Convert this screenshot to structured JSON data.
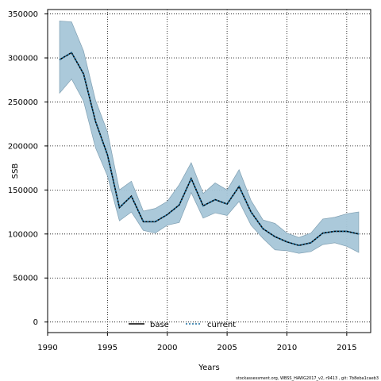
{
  "chart_data": {
    "type": "line",
    "xlabel": "Years",
    "ylabel": "SSB",
    "xlim": [
      1990,
      2017
    ],
    "ylim": [
      -12000,
      355000
    ],
    "x_ticks": [
      1990,
      1995,
      2000,
      2005,
      2010,
      2015
    ],
    "y_ticks": [
      0,
      50000,
      100000,
      150000,
      200000,
      250000,
      300000,
      350000
    ],
    "grid": true,
    "legend_placement": "bottom-center",
    "x": [
      1991,
      1992,
      1993,
      1994,
      1995,
      1996,
      1997,
      1998,
      1999,
      2000,
      2001,
      2002,
      2003,
      2004,
      2005,
      2006,
      2007,
      2008,
      2009,
      2010,
      2011,
      2012,
      2013,
      2014,
      2015,
      2016
    ],
    "series": [
      {
        "name": "base",
        "color": "#000000",
        "style": "solid",
        "values": [
          298000,
          306000,
          282000,
          228000,
          190000,
          130000,
          143000,
          114000,
          114000,
          122000,
          133000,
          163000,
          132000,
          139000,
          134000,
          154000,
          125000,
          106000,
          97000,
          91000,
          87000,
          90000,
          101000,
          103000,
          103000,
          100000
        ]
      },
      {
        "name": "current",
        "color": "#1a6fa0",
        "style": "dotted",
        "values": [
          298000,
          306000,
          282000,
          228000,
          190000,
          130000,
          143000,
          114000,
          114000,
          122000,
          133000,
          163000,
          132000,
          139000,
          134000,
          154000,
          125000,
          106000,
          97000,
          91000,
          87000,
          90000,
          101000,
          103000,
          103000,
          100000
        ]
      }
    ],
    "band": {
      "color": "#a6c6d8",
      "upper": [
        342000,
        341000,
        308000,
        252000,
        216000,
        150000,
        160000,
        126000,
        129000,
        137000,
        156000,
        181000,
        146000,
        158000,
        150000,
        173000,
        138000,
        116000,
        112000,
        101000,
        96000,
        101000,
        117000,
        119000,
        123000,
        125000
      ],
      "lower": [
        260000,
        276000,
        251000,
        198000,
        166000,
        115000,
        125000,
        104000,
        101000,
        110000,
        113000,
        147000,
        118000,
        124000,
        121000,
        137000,
        110000,
        95000,
        82000,
        81000,
        78000,
        80000,
        88000,
        90000,
        86000,
        79000
      ]
    },
    "footnote": "stockassessment.org, WBSS_HAWG2017_v2, r9413 , git: 7b8eba1caeb3"
  }
}
